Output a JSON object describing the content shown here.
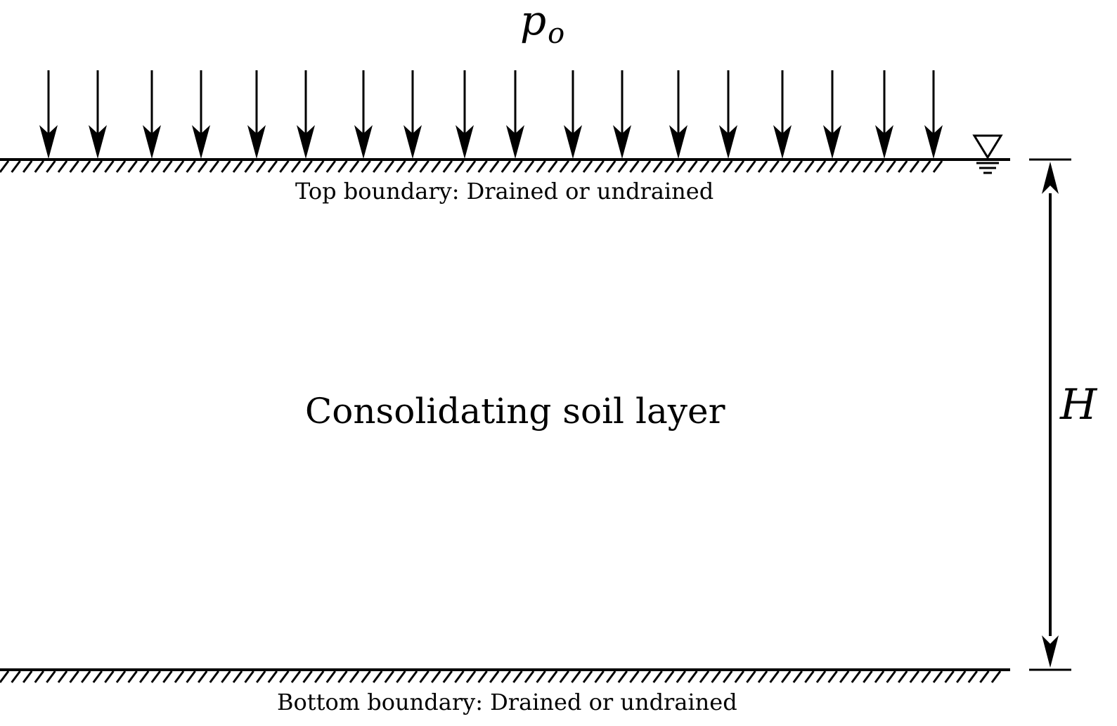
{
  "diagram": {
    "title": "Consolidating soil layer",
    "load": {
      "symbol": "p",
      "subscript": "o",
      "arrow_count": 18
    },
    "top_boundary_label": "Top boundary: Drained or undrained",
    "bottom_boundary_label": "Bottom boundary: Drained or undrained",
    "layer_label": "Consolidating soil layer",
    "thickness_label": "H",
    "water_table_icon": "water-table-icon",
    "colors": {
      "ink": "#000000",
      "background": "#ffffff"
    }
  }
}
